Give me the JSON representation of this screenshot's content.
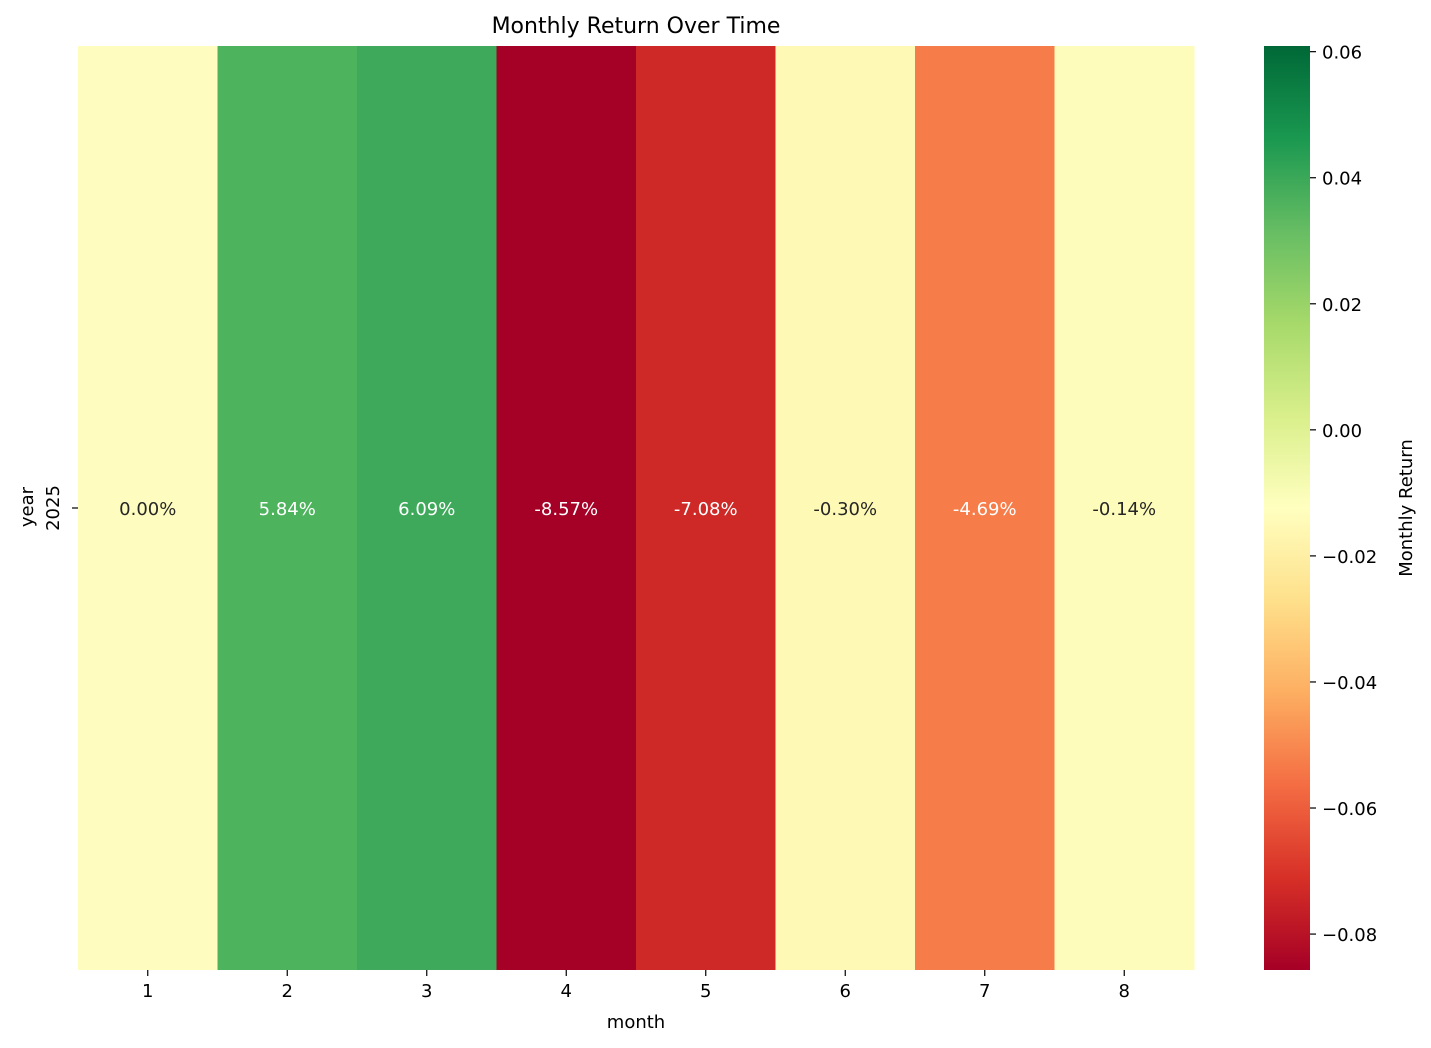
{
  "chart_data": {
    "type": "heatmap",
    "title": "Monthly Return Over Time",
    "xlabel": "month",
    "ylabel": "year",
    "x_categories": [
      "1",
      "2",
      "3",
      "4",
      "5",
      "6",
      "7",
      "8"
    ],
    "y_categories": [
      "2025"
    ],
    "values": [
      [
        0.0,
        0.0584,
        0.0609,
        -0.0857,
        -0.0708,
        -0.003,
        -0.0469,
        -0.0014
      ]
    ],
    "cell_labels": [
      [
        "0.00%",
        "5.84%",
        "6.09%",
        "-8.57%",
        "-7.08%",
        "-0.30%",
        "-4.69%",
        "-0.14%"
      ]
    ],
    "colormap": "RdYlGn",
    "vmin": -0.0857,
    "vmax": 0.0609,
    "colorbar": {
      "label": "Monthly Return",
      "ticks": [
        -0.08,
        -0.06,
        -0.04,
        -0.02,
        0.0,
        0.02,
        0.04,
        0.06
      ],
      "tick_labels": [
        "−0.08",
        "−0.06",
        "−0.04",
        "−0.02",
        "0.00",
        "0.02",
        "0.04",
        "0.06"
      ]
    },
    "colors": {
      "cell_fills": [
        "#fefdbf",
        "#4db35d",
        "#3ea95a",
        "#a50026",
        "#ce2827",
        "#fefab6",
        "#f67d4a",
        "#fefcbb"
      ],
      "cell_text_colors": [
        "#262626",
        "#ffffff",
        "#ffffff",
        "#ffffff",
        "#ffffff",
        "#262626",
        "#ffffff",
        "#262626"
      ]
    }
  }
}
